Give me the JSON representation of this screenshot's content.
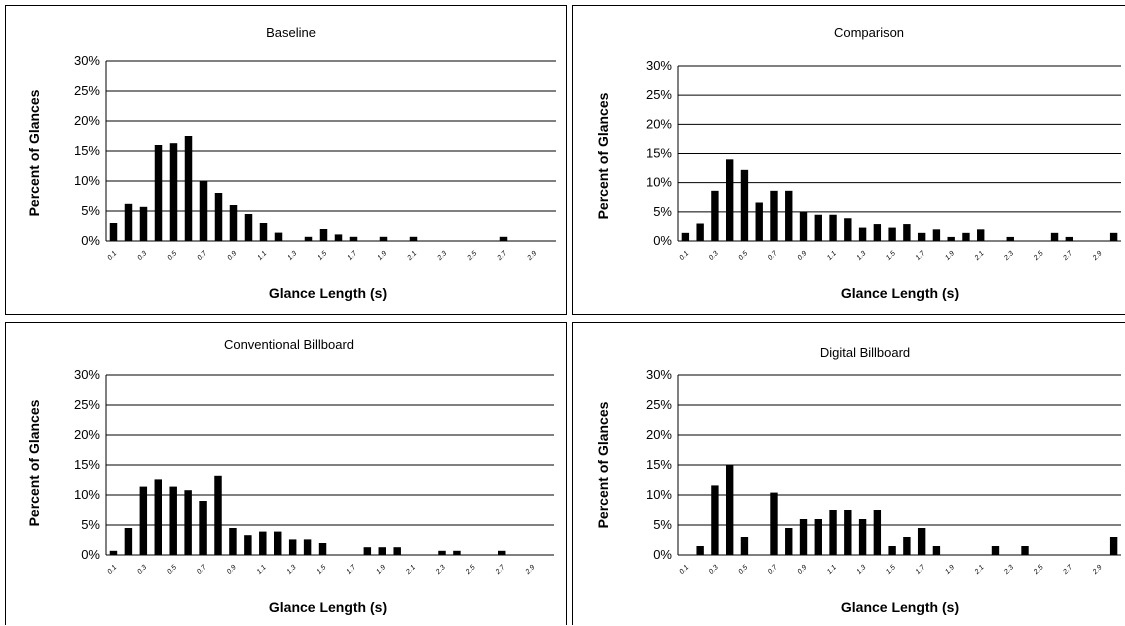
{
  "chart_data": [
    {
      "type": "bar",
      "title": "Baseline",
      "xlabel": "Glance Length (s)",
      "ylabel": "Percent of Glances",
      "ylim": [
        0,
        30
      ],
      "yticks": [
        "0%",
        "5%",
        "10%",
        "15%",
        "20%",
        "25%",
        "30%"
      ],
      "xtick_labels": [
        "0.1",
        "0.3",
        "0.5",
        "0.7",
        "0.9",
        "1.1",
        "1.3",
        "1.5",
        "1.7",
        "1.9",
        "2.1",
        "2.3",
        "2.5",
        "2.7",
        "2.9"
      ],
      "x": [
        0.1,
        0.2,
        0.3,
        0.4,
        0.5,
        0.6,
        0.7,
        0.8,
        0.9,
        1.0,
        1.1,
        1.2,
        1.3,
        1.4,
        1.5,
        1.6,
        1.7,
        1.8,
        1.9,
        2.0,
        2.1,
        2.2,
        2.3,
        2.4,
        2.5,
        2.6,
        2.7,
        2.8,
        2.9,
        3.0
      ],
      "values": [
        3,
        6.2,
        5.7,
        16,
        16.3,
        17.5,
        10,
        8,
        6,
        4.5,
        3,
        1.4,
        0,
        0.7,
        2,
        1.1,
        0.7,
        0,
        0.7,
        0,
        0.7,
        0,
        0,
        0,
        0,
        0,
        0.7,
        0,
        0,
        0
      ]
    },
    {
      "type": "bar",
      "title": "Comparison",
      "xlabel": "Glance Length (s)",
      "ylabel": "Percent of Glances",
      "ylim": [
        0,
        30
      ],
      "yticks": [
        "0%",
        "5%",
        "10%",
        "15%",
        "20%",
        "25%",
        "30%"
      ],
      "xtick_labels": [
        "0.1",
        "0.3",
        "0.5",
        "0.7",
        "0.9",
        "1.1",
        "1.3",
        "1.5",
        "1.7",
        "1.9",
        "2.1",
        "2.3",
        "2.5",
        "2.7",
        "2.9"
      ],
      "x": [
        0.1,
        0.2,
        0.3,
        0.4,
        0.5,
        0.6,
        0.7,
        0.8,
        0.9,
        1.0,
        1.1,
        1.2,
        1.3,
        1.4,
        1.5,
        1.6,
        1.7,
        1.8,
        1.9,
        2.0,
        2.1,
        2.2,
        2.3,
        2.4,
        2.5,
        2.6,
        2.7,
        2.8,
        2.9,
        3.0
      ],
      "values": [
        1.4,
        3,
        8.6,
        14,
        12.2,
        6.6,
        8.6,
        8.6,
        5,
        4.5,
        4.5,
        3.9,
        2.3,
        2.9,
        2.3,
        2.9,
        1.4,
        2,
        0.7,
        1.4,
        2,
        0,
        0.7,
        0,
        0,
        1.4,
        0.7,
        0,
        0,
        1.4
      ]
    },
    {
      "type": "bar",
      "title": "Conventional Billboard",
      "xlabel": "Glance Length (s)",
      "ylabel": "Percent of Glances",
      "ylim": [
        0,
        30
      ],
      "yticks": [
        "0%",
        "5%",
        "10%",
        "15%",
        "20%",
        "25%",
        "30%"
      ],
      "xtick_labels": [
        "0.1",
        "0.3",
        "0.5",
        "0.7",
        "0.9",
        "1.1",
        "1.3",
        "1.5",
        "1.7",
        "1.9",
        "2.1",
        "2.3",
        "2.5",
        "2.7",
        "2.9"
      ],
      "x": [
        0.1,
        0.2,
        0.3,
        0.4,
        0.5,
        0.6,
        0.7,
        0.8,
        0.9,
        1.0,
        1.1,
        1.2,
        1.3,
        1.4,
        1.5,
        1.6,
        1.7,
        1.8,
        1.9,
        2.0,
        2.1,
        2.2,
        2.3,
        2.4,
        2.5,
        2.6,
        2.7,
        2.8,
        2.9,
        3.0
      ],
      "values": [
        0.7,
        4.5,
        11.4,
        12.6,
        11.4,
        10.8,
        9,
        13.2,
        4.5,
        3.3,
        3.9,
        3.9,
        2.6,
        2.6,
        2,
        0,
        0,
        1.3,
        1.3,
        1.3,
        0,
        0,
        0.7,
        0.7,
        0,
        0,
        0.7,
        0,
        0,
        0
      ]
    },
    {
      "type": "bar",
      "title": "Digital Billboard",
      "xlabel": "Glance Length (s)",
      "ylabel": "Percent of Glances",
      "ylim": [
        0,
        30
      ],
      "yticks": [
        "0%",
        "5%",
        "10%",
        "15%",
        "20%",
        "25%",
        "30%"
      ],
      "xtick_labels": [
        "0.1",
        "0.3",
        "0.5",
        "0.7",
        "0.9",
        "1.1",
        "1.3",
        "1.5",
        "1.7",
        "1.9",
        "2.1",
        "2.3",
        "2.5",
        "2.7",
        "2.9"
      ],
      "x": [
        0.1,
        0.2,
        0.3,
        0.4,
        0.5,
        0.6,
        0.7,
        0.8,
        0.9,
        1.0,
        1.1,
        1.2,
        1.3,
        1.4,
        1.5,
        1.6,
        1.7,
        1.8,
        1.9,
        2.0,
        2.1,
        2.2,
        2.3,
        2.4,
        2.5,
        2.6,
        2.7,
        2.8,
        2.9,
        3.0
      ],
      "values": [
        0,
        1.5,
        11.6,
        15,
        3,
        0,
        10.4,
        4.5,
        6,
        6,
        7.5,
        7.5,
        6,
        7.5,
        1.5,
        3,
        4.5,
        1.5,
        0,
        0,
        0,
        1.5,
        0,
        1.5,
        0,
        0,
        0,
        0,
        0,
        3
      ]
    }
  ]
}
